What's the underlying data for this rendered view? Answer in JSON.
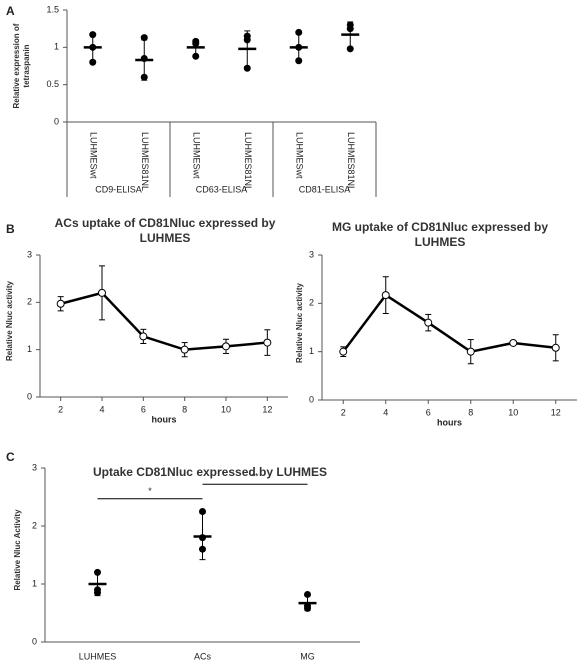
{
  "chart_data": [
    {
      "type": "dot",
      "panel": "A",
      "ylabel": "Relative expression of tetraspanin",
      "ylim": [
        0,
        1.5
      ],
      "yticks": [
        0,
        0.5,
        1,
        1.5
      ],
      "color": "#000000",
      "groups": [
        {
          "name": "CD9-ELISA",
          "categories": [
            "LUHMESwt",
            "LUHMES81NL"
          ],
          "points": [
            [
              1.17,
              1.0,
              0.8
            ],
            [
              1.13,
              0.85,
              0.6
            ]
          ],
          "mean": [
            1.0,
            0.83
          ],
          "error": [
            0.18,
            0.27
          ]
        },
        {
          "name": "CD63-ELISA",
          "categories": [
            "LUHMESwt",
            "LUHMES81NL"
          ],
          "points": [
            [
              1.08,
              1.05,
              0.88
            ],
            [
              1.15,
              1.1,
              0.72
            ]
          ],
          "mean": [
            1.0,
            0.98
          ],
          "error": [
            0.1,
            0.24
          ]
        },
        {
          "name": "CD81-ELISA",
          "categories": [
            "LUHMESwt",
            "LUHMES81NL"
          ],
          "points": [
            [
              1.2,
              1.0,
              0.82
            ],
            [
              1.3,
              1.25,
              0.98
            ]
          ],
          "mean": [
            1.0,
            1.17
          ],
          "error": [
            0.18,
            0.17
          ]
        }
      ]
    },
    {
      "type": "line",
      "panel": "B",
      "title": "ACs uptake of CD81Nluc expressed by LUHMES",
      "xlabel": "hours",
      "ylabel": "Relative Nluc activity",
      "x": [
        2,
        4,
        6,
        8,
        10,
        12
      ],
      "values": [
        1.97,
        2.2,
        1.28,
        1.0,
        1.07,
        1.15
      ],
      "errors": [
        0.15,
        0.57,
        0.15,
        0.15,
        0.15,
        0.27
      ],
      "xlim": [
        1,
        13
      ],
      "ylim": [
        0,
        3
      ],
      "yticks": [
        0,
        1,
        2,
        3
      ],
      "color": "#000000"
    },
    {
      "type": "line",
      "title": "MG uptake of CD81Nluc expressed by LUHMES",
      "xlabel": "hours",
      "ylabel": "Relative Nluc activity",
      "x": [
        2,
        4,
        6,
        8,
        10,
        12
      ],
      "values": [
        1.0,
        2.17,
        1.6,
        1.0,
        1.18,
        1.08
      ],
      "errors": [
        0.1,
        0.38,
        0.17,
        0.25,
        0.02,
        0.27
      ],
      "xlim": [
        1,
        13
      ],
      "ylim": [
        0,
        3
      ],
      "yticks": [
        0,
        1,
        2,
        3
      ],
      "color": "#000000"
    },
    {
      "type": "dot",
      "panel": "C",
      "title": "Uptake CD81Nluc expressed by LUHMES",
      "ylabel": "Relative Nluc Activity",
      "categories": [
        "LUHMES",
        "ACs",
        "MG"
      ],
      "points": [
        [
          1.2,
          0.9,
          0.85
        ],
        [
          2.25,
          1.8,
          1.6
        ],
        [
          0.82,
          0.62,
          0.58
        ]
      ],
      "mean": [
        1.0,
        1.82,
        0.67
      ],
      "error": [
        0.2,
        0.4,
        0.13
      ],
      "ylim": [
        0,
        3
      ],
      "yticks": [
        0,
        1,
        2,
        3
      ],
      "color": "#000000",
      "annotations": [
        {
          "text": "*",
          "y": 2.47,
          "between": [
            0,
            1
          ]
        },
        {
          "text": "**",
          "y": 2.72,
          "between": [
            1,
            2
          ]
        }
      ]
    }
  ]
}
